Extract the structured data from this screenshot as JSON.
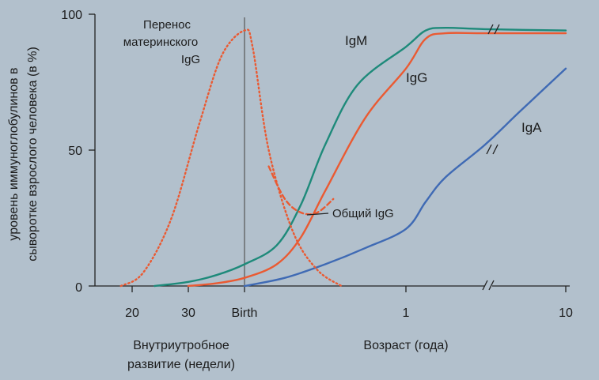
{
  "chart_data": {
    "type": "line",
    "title": "",
    "ylabel_lines": [
      "уровень иммуноглобулинов в",
      "сыворотке взрослого человека (в %)"
    ],
    "xlabel_prenatal_lines": [
      "Внутриутробное",
      "развитие (недели)"
    ],
    "xlabel_postnatal": "Возраст (года)",
    "ylim": [
      0,
      100
    ],
    "yticks": [
      "0",
      "50",
      "100"
    ],
    "xticks": [
      "20",
      "30",
      "Birth",
      "1",
      "10"
    ],
    "x_axis_note": "piecewise axis: gestation weeks 15–40 (birth), then age in years (0–1 linear, 1–10 compressed); axis break after ~3 years",
    "grid": false,
    "legend": "inline labels",
    "series": [
      {
        "name": "IgM",
        "color": "#1e8a7a",
        "style": "solid",
        "points": [
          [
            24,
            0
          ],
          [
            30,
            1.5
          ],
          [
            35,
            4
          ],
          [
            40,
            8
          ],
          [
            0.2,
            15
          ],
          [
            0.35,
            30
          ],
          [
            0.5,
            52
          ],
          [
            0.7,
            74
          ],
          [
            1.0,
            88
          ],
          [
            1.5,
            94
          ],
          [
            2,
            95
          ],
          [
            3,
            94.5
          ],
          [
            10,
            94
          ]
        ]
      },
      {
        "name": "IgG",
        "color": "#ea5a32",
        "style": "solid",
        "points": [
          [
            30,
            0
          ],
          [
            35,
            1
          ],
          [
            40,
            3
          ],
          [
            0.2,
            8
          ],
          [
            0.35,
            18
          ],
          [
            0.5,
            35
          ],
          [
            0.75,
            62
          ],
          [
            1.0,
            80
          ],
          [
            1.5,
            91
          ],
          [
            2,
            93
          ],
          [
            3,
            93
          ],
          [
            10,
            93
          ]
        ]
      },
      {
        "name": "IgA",
        "color": "#3f6ab4",
        "style": "solid",
        "points": [
          [
            40,
            0
          ],
          [
            0.25,
            3
          ],
          [
            0.5,
            8
          ],
          [
            0.75,
            14
          ],
          [
            1.0,
            21
          ],
          [
            1.5,
            31
          ],
          [
            2,
            40
          ],
          [
            3,
            52
          ],
          [
            5,
            64
          ],
          [
            10,
            80
          ]
        ]
      },
      {
        "name": "Перенос материнского IgG",
        "color": "#ea5a32",
        "style": "dotted",
        "points": [
          [
            18,
            0
          ],
          [
            22,
            5
          ],
          [
            27,
            25
          ],
          [
            32,
            60
          ],
          [
            36,
            85
          ],
          [
            40,
            94
          ],
          [
            0.05,
            88
          ],
          [
            0.15,
            50
          ],
          [
            0.3,
            20
          ],
          [
            0.45,
            6
          ],
          [
            0.6,
            0
          ]
        ]
      },
      {
        "name": "Общий IgG",
        "color": "#ea5a32",
        "style": "dashed",
        "points": [
          [
            0.15,
            44
          ],
          [
            0.25,
            32
          ],
          [
            0.35,
            27
          ],
          [
            0.45,
            27
          ],
          [
            0.55,
            32
          ]
        ]
      }
    ],
    "annotations": {
      "maternal_lines": [
        "Перенос",
        "материнского",
        "IgG"
      ],
      "total_igg": "Общий IgG",
      "igm": "IgM",
      "igg": "IgG",
      "iga": "IgA"
    }
  }
}
